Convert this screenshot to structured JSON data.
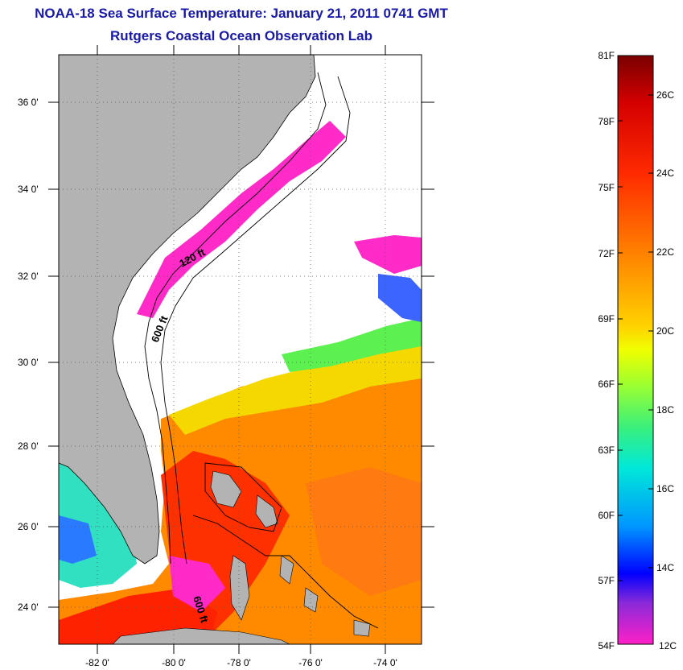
{
  "header": {
    "title": "NOAA-18 Sea Surface Temperature:  January 21, 2011 0741 GMT",
    "subtitle": "Rutgers Coastal Ocean Observation Lab"
  },
  "map": {
    "latitude_labels": [
      "36 0'",
      "34 0'",
      "32 0'",
      "30 0'",
      "28 0'",
      "26 0'",
      "24 0'"
    ],
    "longitude_labels": [
      "-82 0'",
      "-80 0'",
      "-78 0'",
      "-76 0'",
      "-74 0'"
    ],
    "contour_labels": [
      "120 ft",
      "600 ft",
      "600 ft"
    ],
    "land_color": "#b3b3b3",
    "cloud_color": "#ffffff"
  },
  "colorbar": {
    "fahrenheit_labels": [
      "81F",
      "78F",
      "75F",
      "72F",
      "69F",
      "66F",
      "63F",
      "60F",
      "57F",
      "54F"
    ],
    "celsius_labels": [
      "26C",
      "24C",
      "22C",
      "20C",
      "18C",
      "16C",
      "14C",
      "12C"
    ],
    "colors": [
      "#7a0000",
      "#d40000",
      "#ff2a00",
      "#ff6a00",
      "#ff9e00",
      "#ffd200",
      "#f0ff00",
      "#9cff30",
      "#3cf07a",
      "#00e8d8",
      "#0096ff",
      "#0000ff",
      "#8a2ad8",
      "#ff20c8"
    ]
  }
}
